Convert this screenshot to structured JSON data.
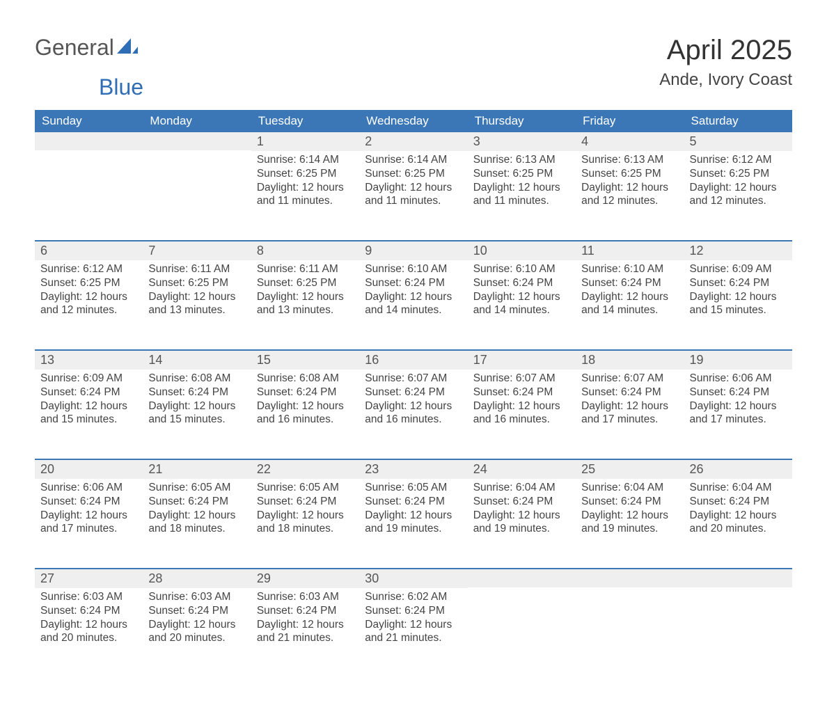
{
  "brand": {
    "line1": "General",
    "line2": "Blue"
  },
  "title": "April 2025",
  "location": "Ande, Ivory Coast",
  "colors": {
    "header_bg": "#3b77b7",
    "header_text": "#ffffff",
    "daynum_bg": "#efeff0",
    "row_divider": "#3b77b7",
    "body_text": "#444444",
    "page_bg": "#ffffff",
    "brand_blue": "#2f6eb5"
  },
  "typography": {
    "title_fontsize": 40,
    "location_fontsize": 24,
    "header_fontsize": 17,
    "daynum_fontsize": 18,
    "body_fontsize": 15.5
  },
  "weekdays": [
    "Sunday",
    "Monday",
    "Tuesday",
    "Wednesday",
    "Thursday",
    "Friday",
    "Saturday"
  ],
  "weeks": [
    [
      null,
      null,
      {
        "n": "1",
        "sunrise": "6:14 AM",
        "sunset": "6:25 PM",
        "daylight": "12 hours and 11 minutes."
      },
      {
        "n": "2",
        "sunrise": "6:14 AM",
        "sunset": "6:25 PM",
        "daylight": "12 hours and 11 minutes."
      },
      {
        "n": "3",
        "sunrise": "6:13 AM",
        "sunset": "6:25 PM",
        "daylight": "12 hours and 11 minutes."
      },
      {
        "n": "4",
        "sunrise": "6:13 AM",
        "sunset": "6:25 PM",
        "daylight": "12 hours and 12 minutes."
      },
      {
        "n": "5",
        "sunrise": "6:12 AM",
        "sunset": "6:25 PM",
        "daylight": "12 hours and 12 minutes."
      }
    ],
    [
      {
        "n": "6",
        "sunrise": "6:12 AM",
        "sunset": "6:25 PM",
        "daylight": "12 hours and 12 minutes."
      },
      {
        "n": "7",
        "sunrise": "6:11 AM",
        "sunset": "6:25 PM",
        "daylight": "12 hours and 13 minutes."
      },
      {
        "n": "8",
        "sunrise": "6:11 AM",
        "sunset": "6:25 PM",
        "daylight": "12 hours and 13 minutes."
      },
      {
        "n": "9",
        "sunrise": "6:10 AM",
        "sunset": "6:24 PM",
        "daylight": "12 hours and 14 minutes."
      },
      {
        "n": "10",
        "sunrise": "6:10 AM",
        "sunset": "6:24 PM",
        "daylight": "12 hours and 14 minutes."
      },
      {
        "n": "11",
        "sunrise": "6:10 AM",
        "sunset": "6:24 PM",
        "daylight": "12 hours and 14 minutes."
      },
      {
        "n": "12",
        "sunrise": "6:09 AM",
        "sunset": "6:24 PM",
        "daylight": "12 hours and 15 minutes."
      }
    ],
    [
      {
        "n": "13",
        "sunrise": "6:09 AM",
        "sunset": "6:24 PM",
        "daylight": "12 hours and 15 minutes."
      },
      {
        "n": "14",
        "sunrise": "6:08 AM",
        "sunset": "6:24 PM",
        "daylight": "12 hours and 15 minutes."
      },
      {
        "n": "15",
        "sunrise": "6:08 AM",
        "sunset": "6:24 PM",
        "daylight": "12 hours and 16 minutes."
      },
      {
        "n": "16",
        "sunrise": "6:07 AM",
        "sunset": "6:24 PM",
        "daylight": "12 hours and 16 minutes."
      },
      {
        "n": "17",
        "sunrise": "6:07 AM",
        "sunset": "6:24 PM",
        "daylight": "12 hours and 16 minutes."
      },
      {
        "n": "18",
        "sunrise": "6:07 AM",
        "sunset": "6:24 PM",
        "daylight": "12 hours and 17 minutes."
      },
      {
        "n": "19",
        "sunrise": "6:06 AM",
        "sunset": "6:24 PM",
        "daylight": "12 hours and 17 minutes."
      }
    ],
    [
      {
        "n": "20",
        "sunrise": "6:06 AM",
        "sunset": "6:24 PM",
        "daylight": "12 hours and 17 minutes."
      },
      {
        "n": "21",
        "sunrise": "6:05 AM",
        "sunset": "6:24 PM",
        "daylight": "12 hours and 18 minutes."
      },
      {
        "n": "22",
        "sunrise": "6:05 AM",
        "sunset": "6:24 PM",
        "daylight": "12 hours and 18 minutes."
      },
      {
        "n": "23",
        "sunrise": "6:05 AM",
        "sunset": "6:24 PM",
        "daylight": "12 hours and 19 minutes."
      },
      {
        "n": "24",
        "sunrise": "6:04 AM",
        "sunset": "6:24 PM",
        "daylight": "12 hours and 19 minutes."
      },
      {
        "n": "25",
        "sunrise": "6:04 AM",
        "sunset": "6:24 PM",
        "daylight": "12 hours and 19 minutes."
      },
      {
        "n": "26",
        "sunrise": "6:04 AM",
        "sunset": "6:24 PM",
        "daylight": "12 hours and 20 minutes."
      }
    ],
    [
      {
        "n": "27",
        "sunrise": "6:03 AM",
        "sunset": "6:24 PM",
        "daylight": "12 hours and 20 minutes."
      },
      {
        "n": "28",
        "sunrise": "6:03 AM",
        "sunset": "6:24 PM",
        "daylight": "12 hours and 20 minutes."
      },
      {
        "n": "29",
        "sunrise": "6:03 AM",
        "sunset": "6:24 PM",
        "daylight": "12 hours and 21 minutes."
      },
      {
        "n": "30",
        "sunrise": "6:02 AM",
        "sunset": "6:24 PM",
        "daylight": "12 hours and 21 minutes."
      },
      null,
      null,
      null
    ]
  ],
  "labels": {
    "sunrise": "Sunrise:",
    "sunset": "Sunset:",
    "daylight": "Daylight:"
  }
}
